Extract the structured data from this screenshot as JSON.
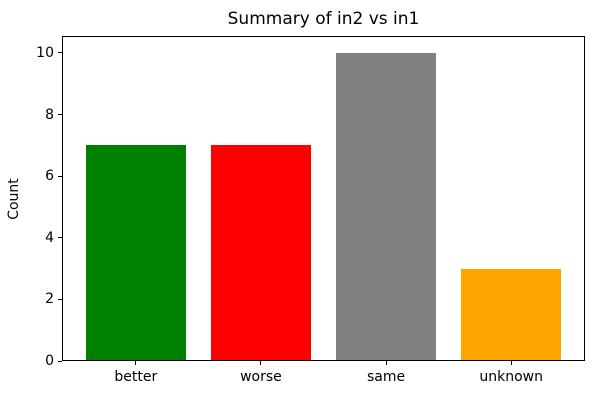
{
  "chart_data": {
    "type": "bar",
    "title": "Summary of in2 vs in1",
    "xlabel": "",
    "ylabel": "Count",
    "categories": [
      "better",
      "worse",
      "same",
      "unknown"
    ],
    "values": [
      7,
      7,
      10,
      3
    ],
    "bar_colors": [
      "#008000",
      "#ff0000",
      "#808080",
      "#ffa500"
    ],
    "yticks": [
      0,
      2,
      4,
      6,
      8,
      10
    ],
    "ylim": [
      0,
      10.55
    ],
    "grid": false,
    "legend": null,
    "background_color": "#ffffff",
    "axis_color": "#000000"
  }
}
